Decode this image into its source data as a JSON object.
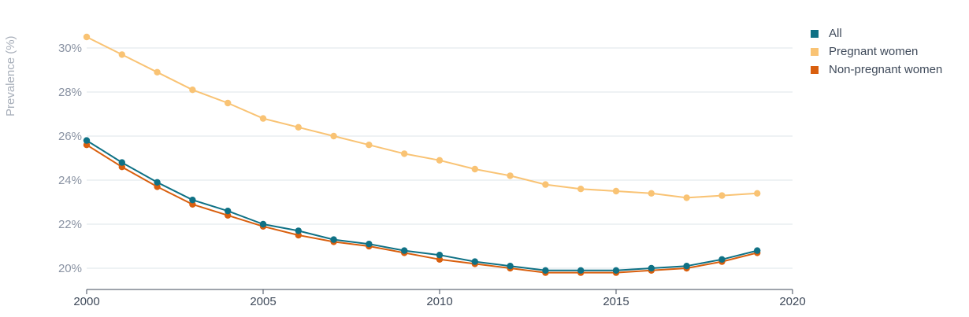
{
  "chart_data": {
    "type": "line",
    "ylabel": "Prevalence (%)",
    "xlim": [
      2000,
      2020
    ],
    "ylim": [
      19,
      31
    ],
    "x_ticks": [
      "2000",
      "2005",
      "2010",
      "2015",
      "2020"
    ],
    "y_ticks": [
      "20%",
      "22%",
      "24%",
      "26%",
      "28%",
      "30%"
    ],
    "grid": true,
    "legend_position": "top-right",
    "x": [
      2000,
      2001,
      2002,
      2003,
      2004,
      2005,
      2006,
      2007,
      2008,
      2009,
      2010,
      2011,
      2012,
      2013,
      2014,
      2015,
      2016,
      2017,
      2018,
      2019
    ],
    "series": [
      {
        "name": "Pregnant women",
        "color": "#f9c374",
        "values": [
          30.5,
          29.7,
          28.9,
          28.1,
          27.5,
          26.8,
          26.4,
          26.0,
          25.6,
          25.2,
          24.9,
          24.5,
          24.2,
          23.8,
          23.6,
          23.5,
          23.4,
          23.2,
          23.3,
          23.4
        ]
      },
      {
        "name": "Non-pregnant women",
        "color": "#d95f0e",
        "values": [
          25.6,
          24.6,
          23.7,
          22.9,
          22.4,
          21.9,
          21.5,
          21.2,
          21.0,
          20.7,
          20.4,
          20.2,
          20.0,
          19.8,
          19.8,
          19.8,
          19.9,
          20.0,
          20.3,
          20.7
        ]
      },
      {
        "name": "All",
        "color": "#0f7185",
        "values": [
          25.8,
          24.8,
          23.9,
          23.1,
          22.6,
          22.0,
          21.7,
          21.3,
          21.1,
          20.8,
          20.6,
          20.3,
          20.1,
          19.9,
          19.9,
          19.9,
          20.0,
          20.1,
          20.4,
          20.8
        ]
      }
    ],
    "legend": [
      {
        "label": "All",
        "color": "#0f7185"
      },
      {
        "label": "Pregnant women",
        "color": "#f9c374"
      },
      {
        "label": "Non-pregnant women",
        "color": "#d95f0e"
      }
    ]
  }
}
